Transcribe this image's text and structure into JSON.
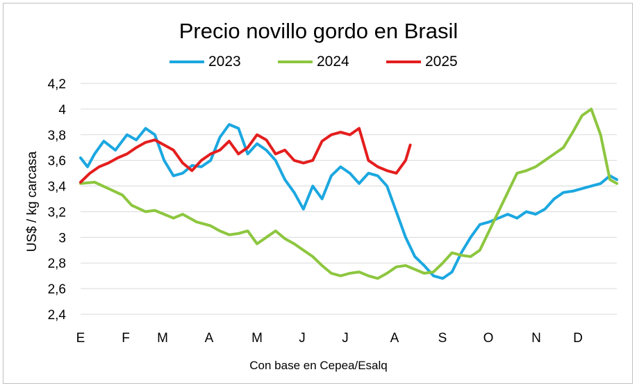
{
  "chart_data": {
    "type": "line",
    "title": "Precio novillo gordo en Brasil",
    "ylabel": "US$ / kg carcasa",
    "footnote": "Con base en Cepea/Esalq",
    "ylim": [
      2.4,
      4.2
    ],
    "yticks": [
      "2,4",
      "2,6",
      "2,8",
      "3",
      "3,2",
      "3,4",
      "3,6",
      "3,8",
      "4",
      "4,2"
    ],
    "xticks": [
      "E",
      "F",
      "M",
      "A",
      "M",
      "J",
      "J",
      "A",
      "S",
      "O",
      "N",
      "D"
    ],
    "grid": "horizontal",
    "legend_position": "top",
    "series": [
      {
        "name": "2023",
        "color": "#1ba7e0",
        "x": [
          0.0,
          0.15,
          0.3,
          0.5,
          0.75,
          1.0,
          1.2,
          1.4,
          1.6,
          1.8,
          2.0,
          2.2,
          2.4,
          2.6,
          2.8,
          3.0,
          3.2,
          3.4,
          3.6,
          3.8,
          4.0,
          4.2,
          4.4,
          4.6,
          4.8,
          5.0,
          5.2,
          5.4,
          5.6,
          5.8,
          6.0,
          6.2,
          6.4,
          6.6,
          6.8,
          7.0,
          7.2,
          7.4,
          7.6,
          7.8,
          8.0,
          8.2,
          8.4,
          8.6,
          8.8,
          9.0,
          9.2,
          9.4,
          9.6,
          9.8,
          10.0,
          10.2,
          10.4,
          10.6,
          10.8,
          11.0,
          11.2,
          11.4,
          11.55
        ],
        "values": [
          3.62,
          3.55,
          3.65,
          3.75,
          3.68,
          3.8,
          3.76,
          3.85,
          3.8,
          3.6,
          3.48,
          3.5,
          3.56,
          3.55,
          3.6,
          3.78,
          3.88,
          3.85,
          3.65,
          3.73,
          3.68,
          3.6,
          3.45,
          3.35,
          3.22,
          3.4,
          3.3,
          3.48,
          3.55,
          3.5,
          3.42,
          3.5,
          3.48,
          3.4,
          3.2,
          3.0,
          2.85,
          2.78,
          2.7,
          2.68,
          2.73,
          2.88,
          3.0,
          3.1,
          3.12,
          3.15,
          3.18,
          3.15,
          3.2,
          3.18,
          3.22,
          3.3,
          3.35,
          3.36,
          3.38,
          3.4,
          3.42,
          3.48,
          3.45
        ]
      },
      {
        "name": "2024",
        "color": "#8dc63f",
        "x": [
          0.0,
          0.3,
          0.6,
          0.9,
          1.1,
          1.4,
          1.6,
          1.8,
          2.0,
          2.2,
          2.5,
          2.8,
          3.0,
          3.2,
          3.4,
          3.6,
          3.8,
          4.0,
          4.2,
          4.4,
          4.6,
          4.8,
          5.0,
          5.2,
          5.4,
          5.6,
          5.8,
          6.0,
          6.2,
          6.4,
          6.6,
          6.8,
          7.0,
          7.2,
          7.4,
          7.6,
          7.8,
          8.0,
          8.2,
          8.4,
          8.6,
          8.8,
          9.0,
          9.2,
          9.4,
          9.6,
          9.8,
          10.0,
          10.2,
          10.4,
          10.6,
          10.8,
          11.0,
          11.2,
          11.4,
          11.55
        ],
        "values": [
          3.42,
          3.43,
          3.38,
          3.33,
          3.25,
          3.2,
          3.21,
          3.18,
          3.15,
          3.18,
          3.12,
          3.09,
          3.05,
          3.02,
          3.03,
          3.05,
          2.95,
          3.0,
          3.05,
          2.99,
          2.95,
          2.9,
          2.85,
          2.78,
          2.72,
          2.7,
          2.72,
          2.73,
          2.7,
          2.68,
          2.72,
          2.77,
          2.78,
          2.75,
          2.72,
          2.73,
          2.8,
          2.88,
          2.86,
          2.85,
          2.9,
          3.05,
          3.2,
          3.35,
          3.5,
          3.52,
          3.55,
          3.6,
          3.65,
          3.7,
          3.82,
          3.95,
          4.0,
          3.8,
          3.45,
          3.42
        ]
      },
      {
        "name": "2025",
        "color": "#e41e1e",
        "x": [
          0.0,
          0.2,
          0.4,
          0.6,
          0.8,
          1.0,
          1.2,
          1.4,
          1.6,
          1.8,
          2.0,
          2.2,
          2.4,
          2.6,
          2.8,
          3.0,
          3.2,
          3.4,
          3.6,
          3.8,
          4.0,
          4.2,
          4.4,
          4.6,
          4.8,
          5.0,
          5.2,
          5.4,
          5.6,
          5.8,
          6.0,
          6.2,
          6.4,
          6.6,
          6.8,
          7.0,
          7.1
        ],
        "values": [
          3.43,
          3.5,
          3.55,
          3.58,
          3.62,
          3.65,
          3.7,
          3.74,
          3.76,
          3.72,
          3.68,
          3.58,
          3.52,
          3.6,
          3.65,
          3.68,
          3.75,
          3.65,
          3.7,
          3.8,
          3.76,
          3.65,
          3.68,
          3.6,
          3.58,
          3.6,
          3.75,
          3.8,
          3.82,
          3.8,
          3.85,
          3.6,
          3.55,
          3.52,
          3.5,
          3.6,
          3.72
        ]
      }
    ]
  }
}
